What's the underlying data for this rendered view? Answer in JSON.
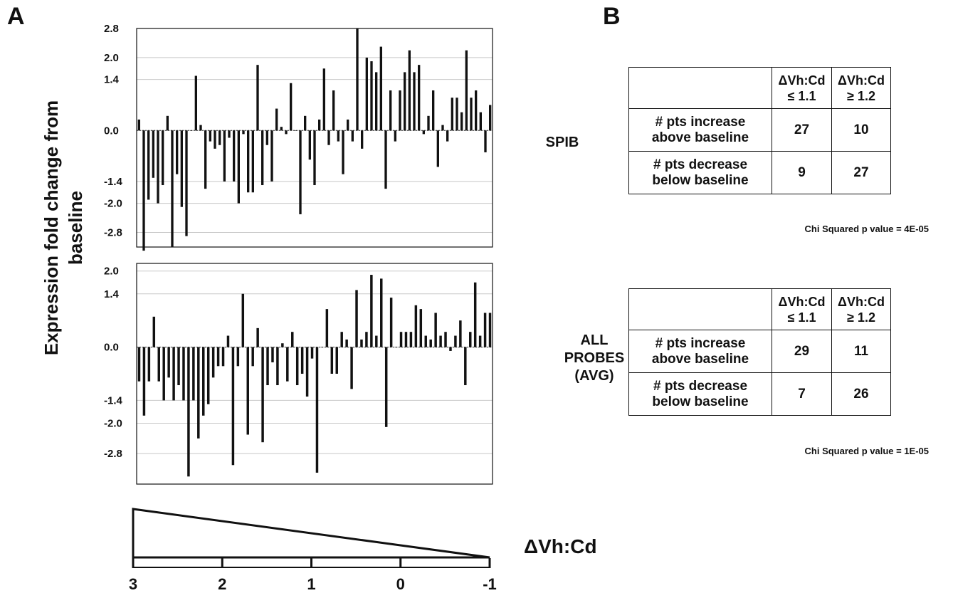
{
  "panels": {
    "left": "A",
    "right": "B"
  },
  "y_axis_label": {
    "line1": "Expression fold  change from",
    "line2": "baseline"
  },
  "chart_data": [
    {
      "type": "bar",
      "title": "SPIB",
      "ylim": [
        -3.2,
        2.8
      ],
      "yticks": [
        "2.8",
        "2.0",
        "1.4",
        "0.0",
        "-1.4",
        "-2.0",
        "-2.8"
      ],
      "yticks_values": [
        2.8,
        2.0,
        1.4,
        0.0,
        -1.4,
        -2.0,
        -2.8
      ],
      "grid": true,
      "values": [
        0.3,
        -3.3,
        -1.9,
        -1.3,
        -2.0,
        -1.5,
        0.4,
        -3.2,
        -1.2,
        -2.1,
        -2.9,
        0.0,
        1.5,
        0.15,
        -1.6,
        -0.3,
        -0.5,
        -0.4,
        -1.4,
        -0.2,
        -1.4,
        -2.0,
        -0.1,
        -1.7,
        -1.7,
        1.8,
        -1.5,
        -0.4,
        -1.4,
        0.6,
        0.1,
        -0.1,
        1.3,
        0.0,
        -2.3,
        0.4,
        -0.8,
        -1.5,
        0.3,
        1.7,
        -0.4,
        1.1,
        -0.3,
        -1.2,
        0.3,
        -0.3,
        2.8,
        -0.5,
        2.0,
        1.9,
        1.6,
        2.3,
        -1.6,
        1.1,
        -0.3,
        1.1,
        1.6,
        2.2,
        1.6,
        1.8,
        -0.1,
        0.4,
        1.1,
        -1.0,
        0.15,
        -0.3,
        0.9,
        0.9,
        0.5,
        2.2,
        0.9,
        1.1,
        0.5,
        -0.6,
        0.7
      ]
    },
    {
      "type": "bar",
      "title": "ALL PROBES (AVG)",
      "ylim": [
        -3.6,
        2.2
      ],
      "yticks": [
        "2.0",
        "1.4",
        "0.0",
        "-1.4",
        "-2.0",
        "-2.8"
      ],
      "yticks_values": [
        2.0,
        1.4,
        0.0,
        -1.4,
        -2.0,
        -2.8
      ],
      "grid": true,
      "values": [
        -0.9,
        -1.8,
        -0.9,
        0.8,
        -0.9,
        -1.4,
        -0.8,
        -1.4,
        -1.0,
        -1.4,
        -3.4,
        -1.4,
        -2.4,
        -1.8,
        -1.5,
        -0.8,
        -0.5,
        -0.5,
        0.3,
        -3.1,
        -0.5,
        1.4,
        -2.3,
        -0.5,
        0.5,
        -2.5,
        -1.0,
        -0.4,
        -1.0,
        0.1,
        -0.9,
        0.4,
        -1.0,
        -0.7,
        -1.3,
        -0.3,
        -3.3,
        0.0,
        1.0,
        -0.7,
        -0.7,
        0.4,
        0.2,
        -1.1,
        1.5,
        0.2,
        0.4,
        1.9,
        0.3,
        1.8,
        -2.1,
        1.3,
        0.0,
        0.4,
        0.4,
        0.4,
        1.1,
        1.0,
        0.3,
        0.2,
        0.9,
        0.3,
        0.4,
        -0.1,
        0.3,
        0.7,
        -1.0,
        0.4,
        1.7,
        0.3,
        0.9,
        0.9
      ]
    }
  ],
  "gradient": {
    "label": "ΔVh:Cd",
    "ticks": [
      "3",
      "2",
      "1",
      "0",
      "-1"
    ],
    "tick_values": [
      3,
      2,
      1,
      0,
      -1
    ]
  },
  "tables": [
    {
      "header": [
        {
          "line1": "ΔVh:Cd",
          "line2": "≤ 1.1"
        },
        {
          "line1": "ΔVh:Cd",
          "line2": "≥ 1.2"
        }
      ],
      "rows": [
        {
          "label1": "# pts increase",
          "label2": "above baseline",
          "v1": "27",
          "v2": "10"
        },
        {
          "label1": "# pts decrease",
          "label2": "below baseline",
          "v1": "9",
          "v2": "27"
        }
      ],
      "pvalue": "Chi Squared p value = 4E-05"
    },
    {
      "header": [
        {
          "line1": "ΔVh:Cd",
          "line2": "≤ 1.1"
        },
        {
          "line1": "ΔVh:Cd",
          "line2": "≥ 1.2"
        }
      ],
      "rows": [
        {
          "label1": "# pts increase",
          "label2": "above baseline",
          "v1": "29",
          "v2": "11"
        },
        {
          "label1": "# pts decrease",
          "label2": "below baseline",
          "v1": "7",
          "v2": "26"
        }
      ],
      "pvalue": "Chi Squared p value = 1E-05"
    }
  ]
}
